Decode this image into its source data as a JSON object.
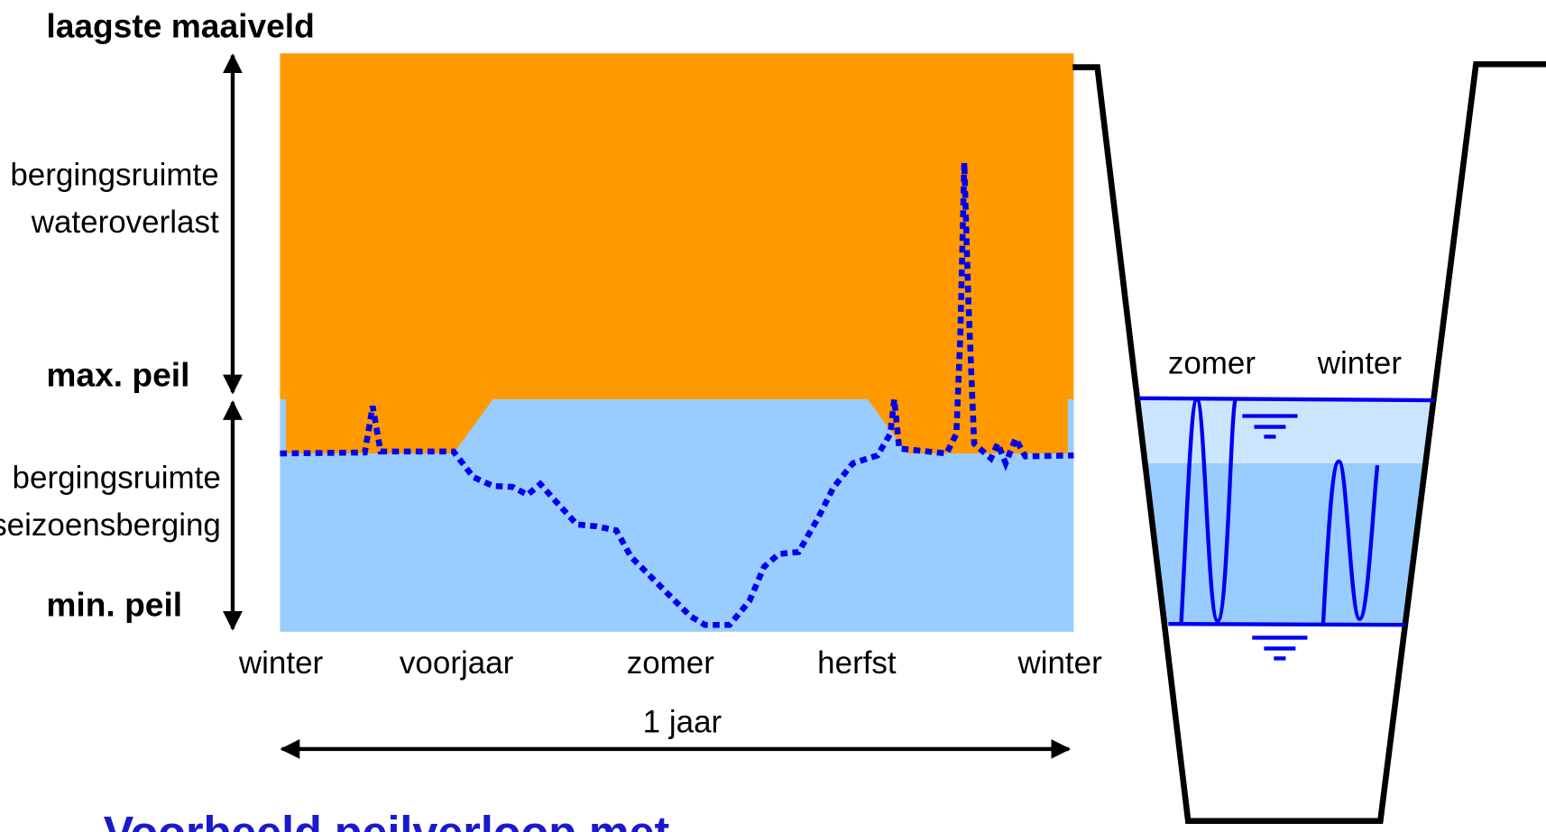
{
  "header": {
    "top_label": "laagste maaiveld"
  },
  "left_labels": {
    "storage_top": [
      "bergingsruimte",
      "wateroverlast"
    ],
    "max_level": "max. peil",
    "storage_bottom": [
      "bergingsruimte",
      "seizoensberging"
    ],
    "min_level": "min. peil"
  },
  "seasons": [
    "winter",
    "voorjaar",
    "zomer",
    "herfst",
    "winter"
  ],
  "period": "1 jaar",
  "ditch": {
    "summer": "zomer",
    "winter": "winter"
  },
  "title": "Voorbeeld peilverloop met"
}
